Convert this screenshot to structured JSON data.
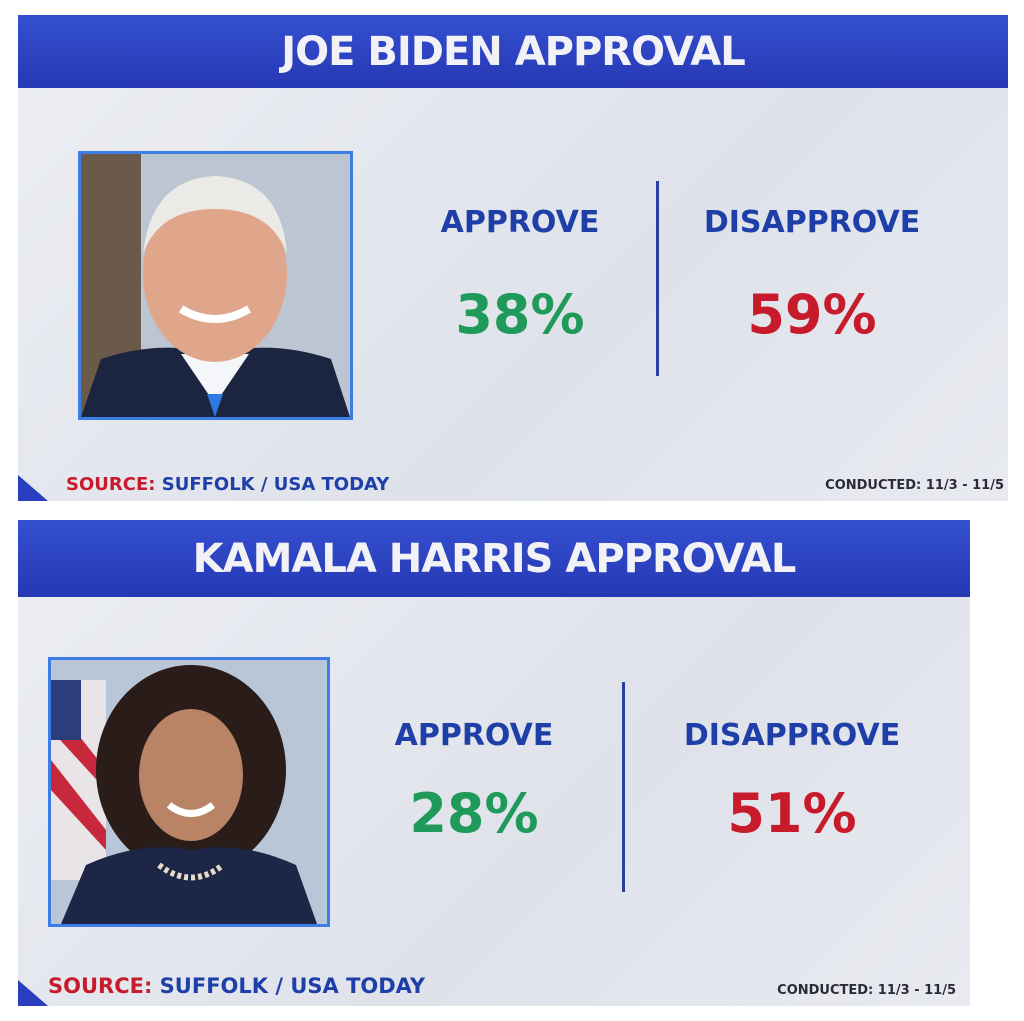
{
  "panels": [
    {
      "title": "JOE BIDEN APPROVAL",
      "approve": {
        "label": "APPROVE",
        "value": "38%"
      },
      "disapprove": {
        "label": "DISAPPROVE",
        "value": "59%"
      },
      "source": {
        "label": "SOURCE:",
        "text": "SUFFOLK / USA TODAY"
      },
      "conducted": "CONDUCTED: 11/3 - 11/5"
    },
    {
      "title": "KAMALA HARRIS APPROVAL",
      "approve": {
        "label": "APPROVE",
        "value": "28%"
      },
      "disapprove": {
        "label": "DISAPPROVE",
        "value": "51%"
      },
      "source": {
        "label": "SOURCE:",
        "text": "SUFFOLK / USA TODAY"
      },
      "conducted": "CONDUCTED: 11/3 - 11/5"
    }
  ]
}
